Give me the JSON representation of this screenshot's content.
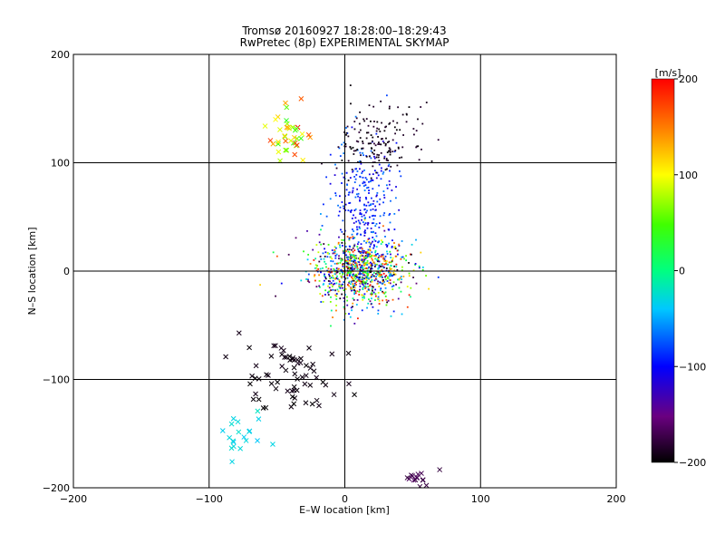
{
  "chart_data": {
    "type": "scatter",
    "title": "Tromsø 20160927 18:28:00–18:29:43",
    "subtitle": "RwPretec (8p) EXPERIMENTAL SKYMAP",
    "xlabel": "E–W location [km]",
    "ylabel": "N–S location [km]",
    "xlim": [
      -200,
      200
    ],
    "ylim": [
      -200,
      200
    ],
    "xticks": [
      "-200",
      "-100",
      "0",
      "100",
      "200"
    ],
    "yticks": [
      "-200",
      "-100",
      "0",
      "100",
      "200"
    ],
    "grid": true,
    "colorbar": {
      "label": "[m/s]",
      "range": [
        -200,
        200
      ],
      "ticks": [
        "-200",
        "-100",
        "0",
        "100",
        "200"
      ],
      "colormap": "rainbow (black-purple-blue-cyan-green-yellow-red)"
    },
    "marker_types": [
      "dot",
      "x"
    ],
    "series": [
      {
        "name": "central cluster",
        "marker": "dot",
        "x_center": 10,
        "y_center": 0,
        "x_spread": 18,
        "y_spread": 15,
        "count": 900,
        "velocity_range": [
          -200,
          200
        ]
      },
      {
        "name": "northern column",
        "marker": "dot",
        "x_center": 15,
        "y_center": 60,
        "x_spread": 12,
        "y_spread": 30,
        "count": 300,
        "velocity_range": [
          -120,
          -60
        ]
      },
      {
        "name": "northeast black group",
        "marker": "dot",
        "x_center": 25,
        "y_center": 120,
        "x_spread": 14,
        "y_spread": 18,
        "count": 160,
        "velocity_range": [
          -200,
          -180
        ]
      },
      {
        "name": "northwest colored group",
        "marker": "x",
        "x_center": -40,
        "y_center": 125,
        "x_spread": 8,
        "y_spread": 12,
        "count": 40,
        "velocity_range": [
          20,
          200
        ]
      },
      {
        "name": "southwest black group",
        "marker": "x",
        "x_center": -40,
        "y_center": -100,
        "x_spread": 18,
        "y_spread": 20,
        "count": 70,
        "velocity_range": [
          -200,
          -190
        ]
      },
      {
        "name": "southwest cyan trail",
        "marker": "x",
        "x_center": -75,
        "y_center": -150,
        "x_spread": 8,
        "y_spread": 12,
        "count": 20,
        "velocity_range": [
          -40,
          -20
        ]
      },
      {
        "name": "southeast purple group",
        "marker": "x",
        "x_center": 55,
        "y_center": -192,
        "x_spread": 6,
        "y_spread": 5,
        "count": 15,
        "velocity_range": [
          -180,
          -160
        ]
      }
    ]
  }
}
